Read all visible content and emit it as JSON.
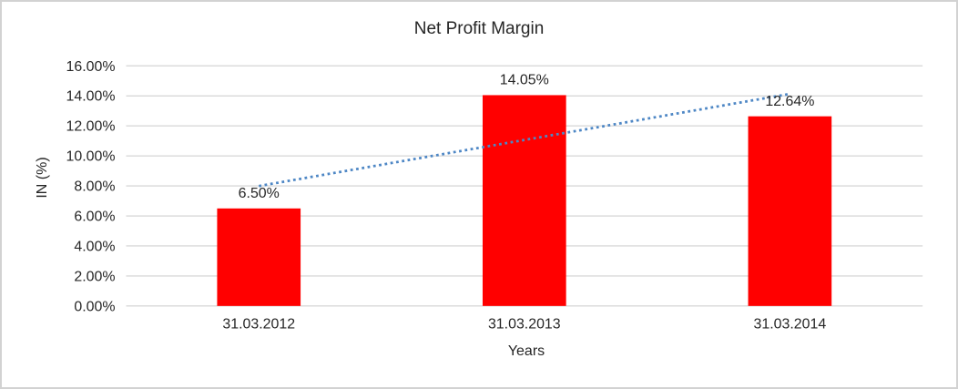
{
  "window": {
    "background": "#ffffff",
    "border_color": "#d2d2d2"
  },
  "chart_data": {
    "type": "bar",
    "title": "Net Profit Margin",
    "xlabel": "Years",
    "ylabel": "IN (%)",
    "categories": [
      "31.03.2012",
      "31.03.2013",
      "31.03.2014"
    ],
    "series": [
      {
        "name": "Net Profit Margin",
        "values": [
          6.5,
          14.05,
          12.64
        ]
      }
    ],
    "data_labels": [
      "6.50%",
      "14.05%",
      "12.64%"
    ],
    "yticks": [
      "0.00%",
      "2.00%",
      "4.00%",
      "6.00%",
      "8.00%",
      "10.00%",
      "12.00%",
      "14.00%",
      "16.00%"
    ],
    "ylim": [
      0,
      16
    ],
    "ytick_step": 2,
    "grid": true,
    "legend_position": "none",
    "bar_color": "#ff0000",
    "gridline_color": "#d9d9d9",
    "text_color": "#262626",
    "trendline": {
      "type": "linear",
      "style": "dotted",
      "color": "#4e87c5"
    }
  }
}
